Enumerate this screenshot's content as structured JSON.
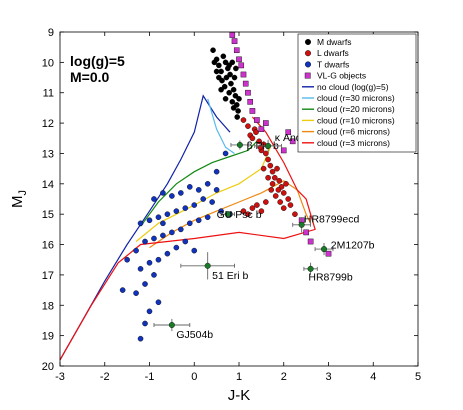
{
  "chart_data": {
    "type": "scatter",
    "title": "",
    "xlabel": "J-K",
    "ylabel": "M_J",
    "xlim": [
      -3,
      5
    ],
    "ylim": [
      20,
      9
    ],
    "y_inverted": true,
    "xticks": [
      -3,
      -2,
      -1,
      0,
      1,
      2,
      3,
      4,
      5
    ],
    "yticks": [
      9,
      10,
      11,
      12,
      13,
      14,
      15,
      16,
      17,
      18,
      19,
      20
    ],
    "grid": false,
    "legend_position": "top-right",
    "parameters_label": [
      "log(g)=5",
      "M=0.0"
    ],
    "scatter_series": [
      {
        "name": "M dwarfs",
        "color": "#000000",
        "marker": "circle",
        "points": [
          [
            0.42,
            9.6
          ],
          [
            0.5,
            9.9
          ],
          [
            0.55,
            10.1
          ],
          [
            0.6,
            10.3
          ],
          [
            0.65,
            9.8
          ],
          [
            0.7,
            10.0
          ],
          [
            0.75,
            10.2
          ],
          [
            0.8,
            10.4
          ],
          [
            0.62,
            10.6
          ],
          [
            0.72,
            10.5
          ],
          [
            0.82,
            10.7
          ],
          [
            0.9,
            10.5
          ],
          [
            0.88,
            10.9
          ],
          [
            0.92,
            11.1
          ],
          [
            0.85,
            11.3
          ],
          [
            0.95,
            11.4
          ],
          [
            0.78,
            11.0
          ],
          [
            0.68,
            10.8
          ],
          [
            0.98,
            11.6
          ],
          [
            1.0,
            11.2
          ],
          [
            0.55,
            10.5
          ],
          [
            0.45,
            10.0
          ],
          [
            0.7,
            11.2
          ],
          [
            0.93,
            10.2
          ],
          [
            0.78,
            10.1
          ],
          [
            0.6,
            10.9
          ],
          [
            0.85,
            10.0
          ],
          [
            0.5,
            10.3
          ],
          [
            0.96,
            11.8
          ],
          [
            0.88,
            11.5
          ]
        ]
      },
      {
        "name": "L dwarfs",
        "color": "#cc1111",
        "marker": "circle",
        "points": [
          [
            1.1,
            11.9
          ],
          [
            1.2,
            12.1
          ],
          [
            1.25,
            12.4
          ],
          [
            1.3,
            12.5
          ],
          [
            1.35,
            12.2
          ],
          [
            1.45,
            12.6
          ],
          [
            1.5,
            12.9
          ],
          [
            1.55,
            12.7
          ],
          [
            1.6,
            13.0
          ],
          [
            1.65,
            13.2
          ],
          [
            1.7,
            13.4
          ],
          [
            1.75,
            13.6
          ],
          [
            1.8,
            13.8
          ],
          [
            1.85,
            13.5
          ],
          [
            1.9,
            13.9
          ],
          [
            1.95,
            14.1
          ],
          [
            2.0,
            14.3
          ],
          [
            2.05,
            14.0
          ],
          [
            2.1,
            14.5
          ],
          [
            1.72,
            14.2
          ],
          [
            1.82,
            14.4
          ],
          [
            1.92,
            14.6
          ],
          [
            2.0,
            14.8
          ],
          [
            1.6,
            14.6
          ],
          [
            1.5,
            14.9
          ],
          [
            1.4,
            14.7
          ],
          [
            1.3,
            14.8
          ],
          [
            1.2,
            15.0
          ],
          [
            1.1,
            14.9
          ],
          [
            2.15,
            14.7
          ],
          [
            2.25,
            15.0
          ],
          [
            1.65,
            13.8
          ],
          [
            1.55,
            13.5
          ],
          [
            1.75,
            14.0
          ],
          [
            1.48,
            12.8
          ],
          [
            1.38,
            12.3
          ],
          [
            1.88,
            14.2
          ]
        ]
      },
      {
        "name": "T dwarfs",
        "color": "#1133bb",
        "marker": "circle",
        "points": [
          [
            0.7,
            13.0
          ],
          [
            0.5,
            13.6
          ],
          [
            0.3,
            14.0
          ],
          [
            0.1,
            14.2
          ],
          [
            -0.1,
            14.1
          ],
          [
            -0.3,
            14.3
          ],
          [
            -0.5,
            14.4
          ],
          [
            -0.7,
            14.3
          ],
          [
            -0.9,
            14.5
          ],
          [
            0.2,
            14.5
          ],
          [
            0.4,
            14.6
          ],
          [
            0.0,
            14.7
          ],
          [
            -0.2,
            14.8
          ],
          [
            -0.4,
            14.9
          ],
          [
            -0.6,
            15.0
          ],
          [
            -0.8,
            15.1
          ],
          [
            -1.0,
            15.2
          ],
          [
            -1.2,
            15.3
          ],
          [
            0.6,
            14.9
          ],
          [
            0.3,
            15.1
          ],
          [
            0.1,
            15.2
          ],
          [
            -0.1,
            15.3
          ],
          [
            -0.3,
            15.5
          ],
          [
            -0.5,
            15.6
          ],
          [
            -0.7,
            15.7
          ],
          [
            -0.9,
            15.8
          ],
          [
            -1.1,
            15.9
          ],
          [
            -0.4,
            16.1
          ],
          [
            -0.6,
            16.3
          ],
          [
            -0.8,
            16.5
          ],
          [
            -1.0,
            16.6
          ],
          [
            -1.2,
            16.8
          ],
          [
            -0.9,
            17.0
          ],
          [
            -1.1,
            17.3
          ],
          [
            -1.3,
            17.6
          ],
          [
            -0.8,
            17.9
          ],
          [
            -1.0,
            18.2
          ],
          [
            -1.1,
            18.6
          ],
          [
            -1.2,
            19.1
          ],
          [
            -0.7,
            15.3
          ],
          [
            0.5,
            14.2
          ],
          [
            0.8,
            15.0
          ],
          [
            -1.3,
            16.2
          ],
          [
            -1.5,
            16.5
          ],
          [
            -1.6,
            17.5
          ],
          [
            -0.2,
            15.9
          ],
          [
            0.0,
            16.2
          ]
        ]
      },
      {
        "name": "VL-G objects",
        "color": "#cc33cc",
        "marker": "square",
        "points": [
          [
            0.85,
            9.1
          ],
          [
            0.9,
            9.3
          ],
          [
            0.95,
            9.6
          ],
          [
            1.0,
            9.9
          ],
          [
            1.05,
            10.1
          ],
          [
            1.1,
            10.4
          ],
          [
            1.15,
            10.7
          ],
          [
            1.2,
            11.0
          ],
          [
            1.25,
            11.3
          ],
          [
            1.3,
            11.6
          ],
          [
            1.4,
            11.9
          ],
          [
            1.5,
            12.2
          ],
          [
            1.6,
            12.0
          ],
          [
            2.1,
            12.3
          ],
          [
            2.2,
            12.6
          ],
          [
            2.0,
            12.9
          ],
          [
            2.4,
            15.2
          ],
          [
            2.5,
            15.6
          ],
          [
            2.6,
            15.9
          ],
          [
            3.0,
            16.3
          ]
        ]
      }
    ],
    "model_series": [
      {
        "name": "no cloud (log(g)=5)",
        "color": "#1122aa",
        "points": [
          [
            -3.0,
            19.8
          ],
          [
            -2.5,
            18.5
          ],
          [
            -2.0,
            17.2
          ],
          [
            -1.5,
            16.0
          ],
          [
            -1.0,
            14.9
          ],
          [
            -0.6,
            14.0
          ],
          [
            -0.3,
            13.2
          ],
          [
            0.0,
            12.3
          ],
          [
            0.2,
            11.1
          ],
          [
            0.5,
            11.8
          ],
          [
            0.8,
            12.3
          ]
        ]
      },
      {
        "name": "cloud (r=30 microns)",
        "color": "#55bbee",
        "points": [
          [
            0.3,
            11.2
          ],
          [
            0.5,
            12.2
          ],
          [
            0.7,
            12.8
          ],
          [
            0.9,
            13.0
          ]
        ]
      },
      {
        "name": "cloud (r=20 microns)",
        "color": "#118811",
        "points": [
          [
            -1.2,
            15.4
          ],
          [
            -0.8,
            14.6
          ],
          [
            -0.4,
            14.0
          ],
          [
            0.0,
            13.6
          ],
          [
            0.4,
            13.3
          ],
          [
            0.8,
            13.1
          ],
          [
            1.2,
            12.9
          ],
          [
            1.4,
            12.6
          ]
        ]
      },
      {
        "name": "cloud (r=10 microns)",
        "color": "#eecc11",
        "points": [
          [
            -1.3,
            15.9
          ],
          [
            -0.8,
            15.3
          ],
          [
            -0.4,
            15.0
          ],
          [
            0.0,
            14.7
          ],
          [
            0.5,
            14.3
          ],
          [
            1.0,
            14.0
          ],
          [
            1.5,
            13.5
          ],
          [
            1.7,
            12.8
          ]
        ]
      },
      {
        "name": "cloud (r=6 microns)",
        "color": "#ee8811",
        "points": [
          [
            -1.0,
            16.1
          ],
          [
            -0.5,
            15.6
          ],
          [
            0.0,
            15.2
          ],
          [
            0.5,
            14.9
          ],
          [
            1.0,
            14.6
          ],
          [
            1.5,
            14.3
          ],
          [
            2.0,
            13.9
          ],
          [
            2.3,
            14.2
          ],
          [
            2.5,
            15.0
          ],
          [
            2.6,
            15.3
          ]
        ]
      },
      {
        "name": "cloud (r=3 microns)",
        "color": "#ee1111",
        "points": [
          [
            -3.0,
            19.8
          ],
          [
            -2.3,
            18.0
          ],
          [
            -1.7,
            16.6
          ],
          [
            -1.2,
            16.0
          ],
          [
            0.0,
            15.8
          ],
          [
            1.0,
            15.6
          ],
          [
            2.0,
            15.8
          ],
          [
            2.7,
            15.5
          ],
          [
            2.5,
            14.5
          ],
          [
            2.3,
            14.2
          ],
          [
            2.0,
            13.3
          ],
          [
            1.8,
            12.8
          ],
          [
            1.6,
            12.3
          ],
          [
            1.3,
            11.8
          ]
        ]
      }
    ],
    "labeled_objects": [
      {
        "label": "β Pic b",
        "x": 1.02,
        "y": 12.72,
        "xerr": 0.2,
        "yerr": 0.15,
        "label_dx": 0.15,
        "label_dy": 0.0
      },
      {
        "label": "κ And b",
        "x": 1.65,
        "y": 12.75,
        "xerr": 0.3,
        "yerr": 0.2,
        "label_dx": 0.15,
        "label_dy": -0.3
      },
      {
        "label": "GU Psc b",
        "x": 0.75,
        "y": 15.0,
        "xerr": 0.15,
        "yerr": 0.1,
        "label_dx": -0.25,
        "label_dy": 0.0
      },
      {
        "label": "HR8799ecd",
        "x": 2.4,
        "y": 15.35,
        "xerr": 0.2,
        "yerr": 0.25,
        "label_dx": 0.05,
        "label_dy": -0.2
      },
      {
        "label": "2M1207b",
        "x": 2.9,
        "y": 16.15,
        "xerr": 0.2,
        "yerr": 0.2,
        "label_dx": 0.15,
        "label_dy": -0.15
      },
      {
        "label": "HR8799b",
        "x": 2.6,
        "y": 16.8,
        "xerr": 0.15,
        "yerr": 0.2,
        "label_dx": -0.05,
        "label_dy": 0.25
      },
      {
        "label": "51 Eri b",
        "x": 0.3,
        "y": 16.7,
        "xerr": 0.6,
        "yerr": 0.45,
        "label_dx": 0.1,
        "label_dy": 0.3
      },
      {
        "label": "GJ504b",
        "x": -0.5,
        "y": 18.65,
        "xerr": 0.4,
        "yerr": 0.2,
        "label_dx": 0.1,
        "label_dy": 0.3
      }
    ]
  }
}
